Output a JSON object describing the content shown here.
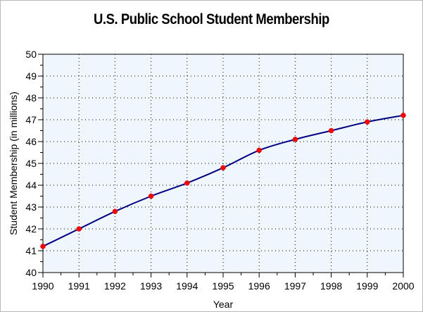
{
  "chart_data": {
    "type": "line",
    "title": "U.S. Public School Student Membership",
    "xlabel": "Year",
    "ylabel": "Student Membership (in millions)",
    "x": [
      1990,
      1991,
      1992,
      1993,
      1994,
      1995,
      1996,
      1997,
      1998,
      1999,
      2000
    ],
    "series": [
      {
        "values": [
          41.2,
          42.0,
          42.8,
          43.5,
          44.1,
          44.8,
          45.6,
          46.1,
          46.5,
          46.9,
          47.2
        ]
      }
    ],
    "xlim": [
      1990,
      2000
    ],
    "ylim": [
      40,
      50
    ],
    "x_ticks": [
      "1990",
      "1991",
      "1992",
      "1993",
      "1994",
      "1995",
      "1996",
      "1997",
      "1998",
      "1999",
      "2000"
    ],
    "y_ticks": [
      "40",
      "41",
      "42",
      "43",
      "44",
      "45",
      "46",
      "47",
      "48",
      "49",
      "50"
    ],
    "grid": true,
    "line_color": "#000080",
    "marker_color": "#ff0000",
    "plot_background": "#f0f7fc"
  }
}
